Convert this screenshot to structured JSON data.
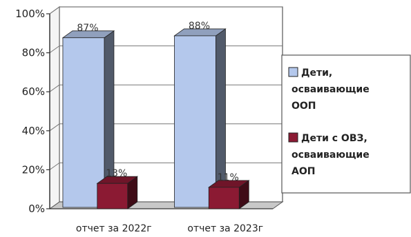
{
  "chart_data": {
    "type": "bar",
    "categories": [
      "отчет за 2022г",
      "отчет за 2023г"
    ],
    "series": [
      {
        "name": "Дети, осваивающие ООП",
        "legend_lines": [
          "Дети,",
          "осваивающие",
          "ООП"
        ],
        "values": [
          87,
          88
        ],
        "data_labels": [
          "87%",
          "88%"
        ],
        "color": "#b4c8ec"
      },
      {
        "name": "Дети с ОВЗ, осваивающие АОП",
        "legend_lines": [
          "Дети с ОВЗ,",
          "осваивающие",
          "АОП"
        ],
        "values": [
          13,
          11
        ],
        "data_labels": [
          "13%",
          "11%"
        ],
        "color": "#8b1a33"
      }
    ],
    "y_ticks": [
      "0%",
      "20%",
      "40%",
      "60%",
      "80%",
      "100%"
    ],
    "ylim": [
      0,
      100
    ],
    "grid": true,
    "legend_position": "right",
    "style": "3d-column"
  }
}
